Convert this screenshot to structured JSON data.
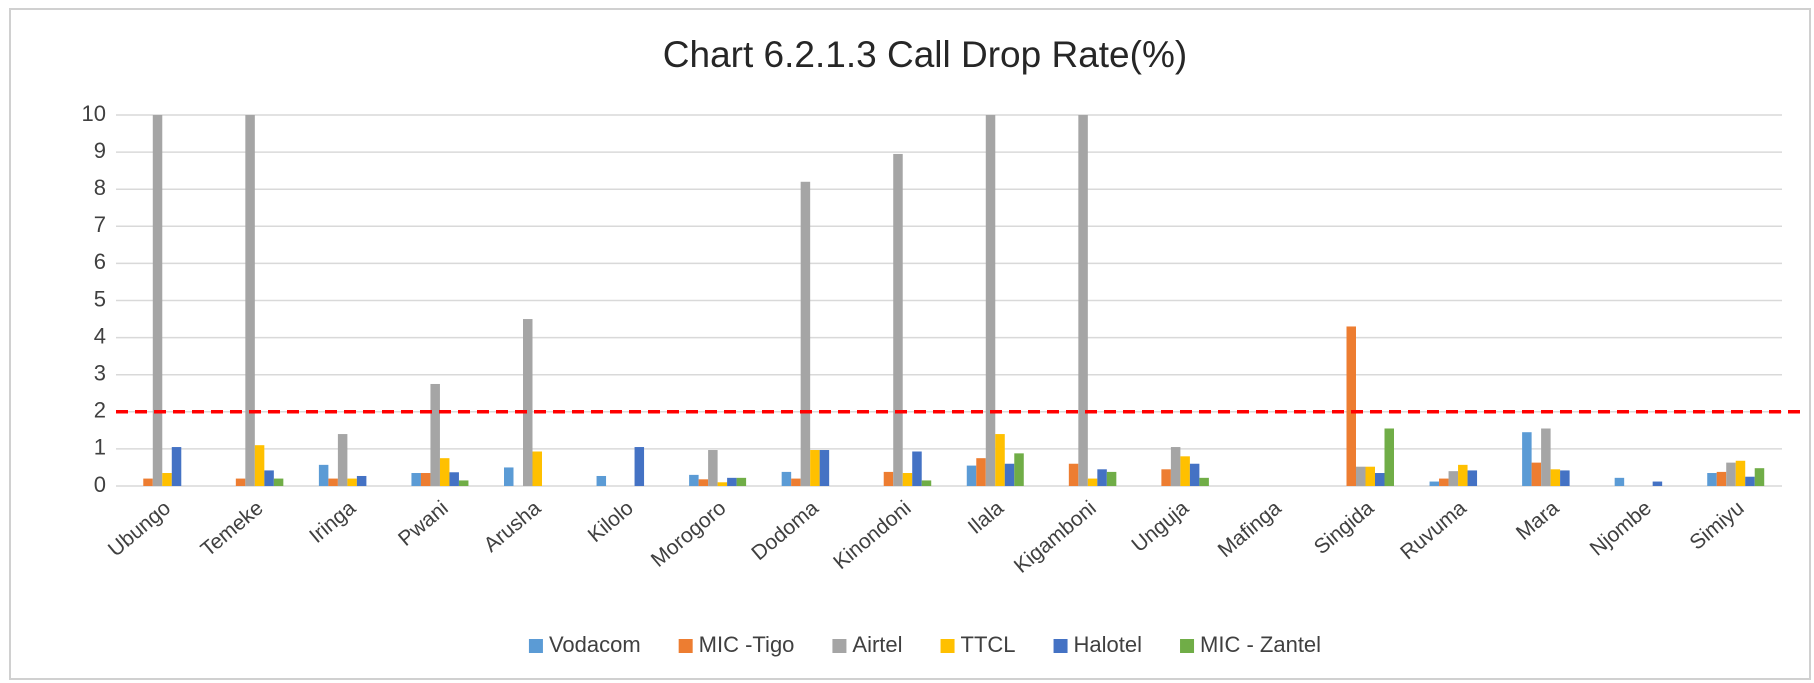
{
  "chart_data": {
    "type": "bar",
    "title": "Chart 6.2.1.3  Call Drop Rate(%)",
    "categories": [
      "Ubungo",
      "Temeke",
      "Iringa",
      "Pwani",
      "Arusha",
      "Kilolo",
      "Morogoro",
      "Dodoma",
      "Kinondoni",
      "Ilala",
      "Kigamboni",
      "Unguja",
      "Mafinga",
      "Singida",
      "Ruvuma",
      "Mara",
      "Njombe",
      "Simiyu"
    ],
    "series": [
      {
        "name": "Vodacom",
        "color": "#5b9bd5",
        "values": [
          null,
          null,
          0.57,
          0.35,
          0.5,
          0.27,
          0.3,
          0.38,
          null,
          0.55,
          null,
          null,
          null,
          null,
          0.12,
          1.45,
          0.22,
          0.35
        ]
      },
      {
        "name": "MIC -Tigo",
        "color": "#ed7d31",
        "values": [
          0.2,
          0.2,
          0.2,
          0.35,
          null,
          null,
          0.18,
          0.2,
          0.38,
          0.75,
          0.6,
          0.45,
          null,
          4.3,
          0.2,
          0.63,
          null,
          0.38
        ]
      },
      {
        "name": "Airtel",
        "color": "#a5a5a5",
        "values": [
          10,
          10,
          1.4,
          2.75,
          4.5,
          null,
          0.97,
          8.2,
          8.95,
          10,
          10,
          1.05,
          null,
          0.52,
          0.4,
          1.55,
          null,
          0.63
        ]
      },
      {
        "name": "TTCL",
        "color": "#ffc000",
        "values": [
          0.35,
          1.1,
          0.2,
          0.75,
          0.93,
          null,
          0.1,
          0.97,
          0.35,
          1.4,
          0.2,
          0.8,
          null,
          0.52,
          0.57,
          0.45,
          null,
          0.68
        ]
      },
      {
        "name": "Halotel",
        "color": "#4472c4",
        "values": [
          1.05,
          0.42,
          0.27,
          0.37,
          null,
          1.05,
          0.22,
          0.97,
          0.93,
          0.6,
          0.45,
          0.6,
          null,
          0.35,
          0.42,
          0.42,
          0.12,
          0.25
        ]
      },
      {
        "name": "MIC - Zantel",
        "color": "#70ad47",
        "values": [
          null,
          0.2,
          null,
          0.15,
          null,
          null,
          0.22,
          null,
          0.15,
          0.88,
          0.38,
          0.22,
          null,
          1.55,
          null,
          null,
          null,
          0.48
        ]
      }
    ],
    "ylim": [
      0,
      10
    ],
    "yticks": [
      0,
      1,
      2,
      3,
      4,
      5,
      6,
      7,
      8,
      9,
      10
    ],
    "grid": true,
    "reference_line": {
      "value": 2,
      "color": "#ff0000"
    },
    "legend": "bottom"
  }
}
